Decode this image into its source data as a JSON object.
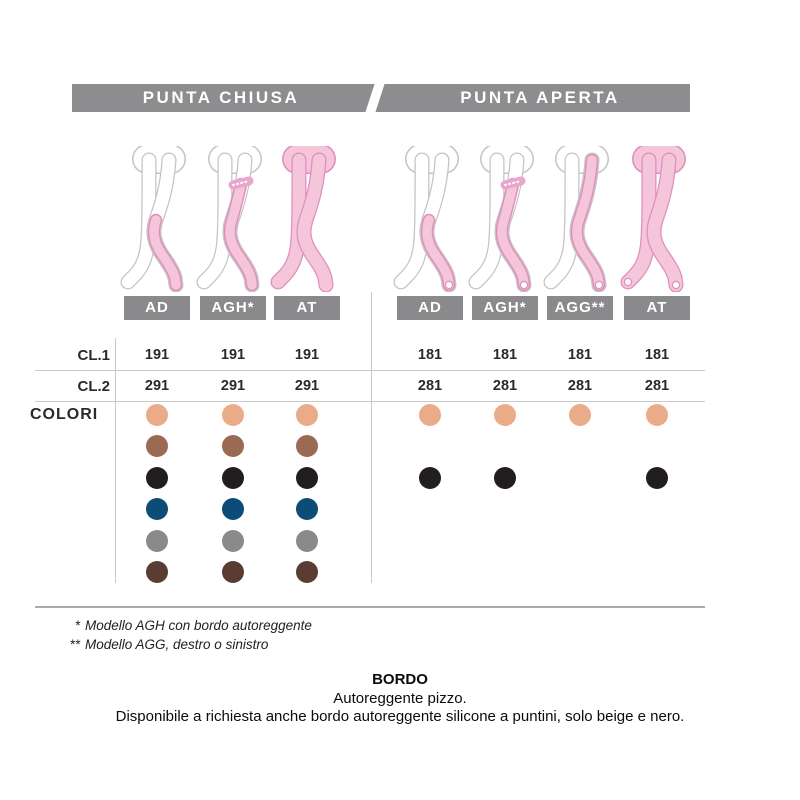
{
  "header": {
    "left_banner": "PUNTA CHIUSA",
    "right_banner": "PUNTA APERTA"
  },
  "row_labels": {
    "cl1": "CL.1",
    "cl2": "CL.2",
    "colori": "COLORI"
  },
  "colors": {
    "palette": [
      {
        "name": "beige",
        "hex": "#eaab89"
      },
      {
        "name": "brown",
        "hex": "#9a6a52"
      },
      {
        "name": "black",
        "hex": "#221e1f"
      },
      {
        "name": "blue",
        "hex": "#0e4c78"
      },
      {
        "name": "gray",
        "hex": "#8a8a8d"
      },
      {
        "name": "dark-brown",
        "hex": "#5a3c32"
      }
    ]
  },
  "sections": [
    {
      "name": "punta-chiusa",
      "columns": [
        {
          "model": "AD",
          "leg": "ad",
          "toe": "closed",
          "cl1": "191",
          "cl2": "291",
          "colors": [
            0,
            1,
            2,
            3,
            4,
            5
          ]
        },
        {
          "model": "AGH*",
          "leg": "agh",
          "toe": "closed",
          "cl1": "191",
          "cl2": "291",
          "colors": [
            0,
            1,
            2,
            3,
            4,
            5
          ]
        },
        {
          "model": "AT",
          "leg": "at",
          "toe": "closed",
          "cl1": "191",
          "cl2": "291",
          "colors": [
            0,
            1,
            2,
            3,
            4,
            5
          ]
        }
      ]
    },
    {
      "name": "punta-aperta",
      "columns": [
        {
          "model": "AD",
          "leg": "ad",
          "toe": "open",
          "cl1": "181",
          "cl2": "281",
          "colors": [
            0,
            2
          ]
        },
        {
          "model": "AGH*",
          "leg": "agh",
          "toe": "open",
          "cl1": "181",
          "cl2": "281",
          "colors": [
            0,
            2
          ]
        },
        {
          "model": "AGG**",
          "leg": "agg",
          "toe": "open",
          "cl1": "181",
          "cl2": "281",
          "colors": [
            0
          ]
        },
        {
          "model": "AT",
          "leg": "at",
          "toe": "open",
          "cl1": "181",
          "cl2": "281",
          "colors": [
            0,
            2
          ]
        }
      ]
    }
  ],
  "footnotes": [
    {
      "marker": "*",
      "text": "Modello AGH con bordo autoreggente"
    },
    {
      "marker": "**",
      "text": "Modello AGG, destro o sinistro"
    }
  ],
  "bordo": {
    "title": "BORDO",
    "line1": "Autoreggente pizzo.",
    "line2": "Disponibile a richiesta anche bordo autoreggente silicone a puntini, solo beige e nero."
  }
}
